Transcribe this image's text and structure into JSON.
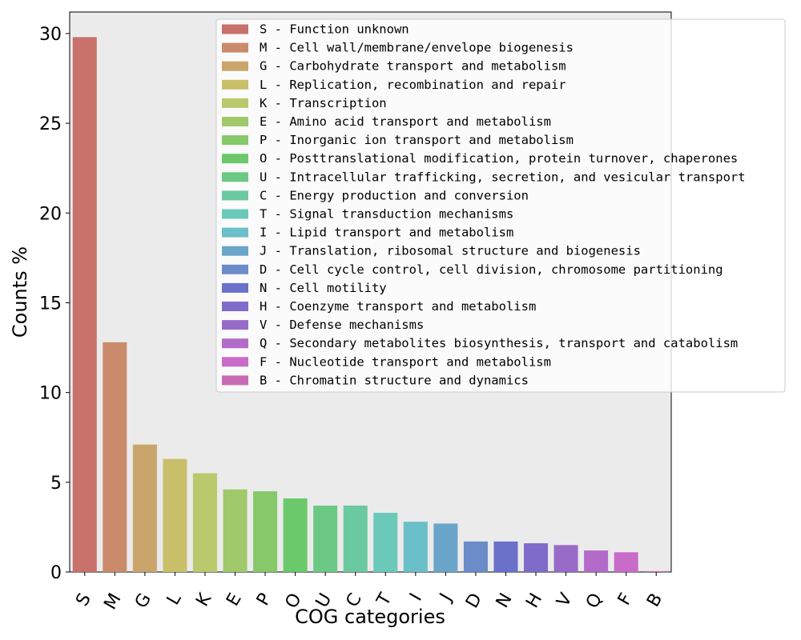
{
  "chart_data": {
    "type": "bar",
    "xlabel": "COG categories",
    "ylabel": "Counts %",
    "ylim": [
      0,
      31.2
    ],
    "yticks": [
      0,
      5,
      10,
      15,
      20,
      25,
      30
    ],
    "grid": false,
    "background": "#ebebeb",
    "legend_position": "top-right",
    "categories": [
      "S",
      "M",
      "G",
      "L",
      "K",
      "E",
      "P",
      "O",
      "U",
      "C",
      "T",
      "I",
      "J",
      "D",
      "N",
      "H",
      "V",
      "Q",
      "F",
      "B"
    ],
    "values": [
      29.8,
      12.8,
      7.1,
      6.3,
      5.5,
      4.6,
      4.5,
      4.1,
      3.7,
      3.7,
      3.3,
      2.8,
      2.7,
      1.7,
      1.7,
      1.6,
      1.5,
      1.2,
      1.1,
      0.05
    ],
    "colors": [
      "#c9716b",
      "#c98b6b",
      "#c9a56b",
      "#c9bf6b",
      "#b9c96b",
      "#9fc96b",
      "#85c96b",
      "#6bc96b",
      "#6bc985",
      "#6bc99f",
      "#6bc9b9",
      "#6bbfc9",
      "#6ba5c9",
      "#6b8bc9",
      "#6b71c9",
      "#7f6bc9",
      "#996bc9",
      "#b36bc9",
      "#c96bc9",
      "#c96bb3"
    ],
    "legend": [
      "S - Function unknown",
      "M - Cell wall/membrane/envelope biogenesis",
      "G - Carbohydrate transport and metabolism",
      "L - Replication, recombination and repair",
      "K - Transcription",
      "E - Amino acid transport and metabolism",
      "P - Inorganic ion transport and metabolism",
      "O - Posttranslational modification, protein turnover, chaperones",
      "U - Intracellular trafficking, secretion, and vesicular transport",
      "C - Energy production and conversion",
      "T - Signal transduction mechanisms",
      "I - Lipid transport and metabolism",
      "J - Translation, ribosomal structure and biogenesis",
      "D - Cell cycle control, cell division, chromosome partitioning",
      "N - Cell motility",
      "H - Coenzyme transport and metabolism",
      "V - Defense mechanisms",
      "Q - Secondary metabolites biosynthesis, transport and catabolism",
      "F - Nucleotide transport and metabolism",
      "B - Chromatin structure and dynamics"
    ]
  }
}
